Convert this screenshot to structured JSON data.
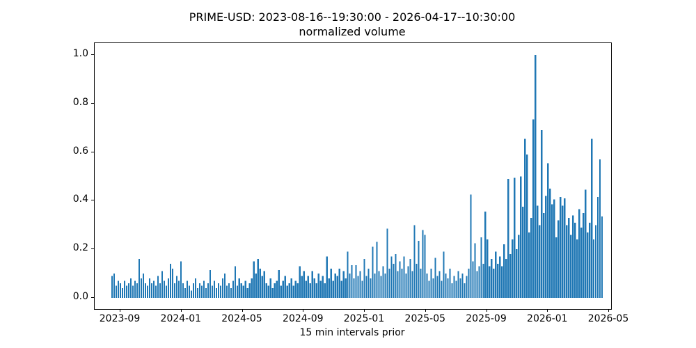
{
  "figure": {
    "title": "PRIME-USD: 2023-08-16--19:30:00 - 2026-04-17--10:30:00",
    "subtitle": "normalized volume"
  },
  "chart_data": {
    "type": "bar",
    "title": "PRIME-USD: 2023-08-16--19:30:00 - 2026-04-17--10:30:00",
    "subtitle": "normalized volume",
    "xlabel": "15 min intervals prior",
    "ylabel": "",
    "x_range_start": "2023-08-16--19:30:00",
    "x_range_end": "2026-04-17--10:30:00",
    "x_tick_labels": [
      "2023-09",
      "2024-01",
      "2024-05",
      "2024-09",
      "2025-01",
      "2025-05",
      "2025-09",
      "2026-01",
      "2026-05"
    ],
    "y_ticks": [
      0.0,
      0.2,
      0.4,
      0.6,
      0.8,
      1.0
    ],
    "ylim": [
      0.0,
      1.0
    ],
    "grid": false,
    "legend_position": "none",
    "bar_color": "#1f77b4",
    "values_note": "downsampled max-envelope of the dense 15-min volume series, left(2023-08) to right(2026-04)",
    "values": [
      0.09,
      0.1,
      0.05,
      0.07,
      0.06,
      0.04,
      0.07,
      0.05,
      0.06,
      0.08,
      0.05,
      0.07,
      0.06,
      0.16,
      0.08,
      0.1,
      0.06,
      0.05,
      0.08,
      0.06,
      0.07,
      0.05,
      0.09,
      0.06,
      0.11,
      0.07,
      0.05,
      0.08,
      0.14,
      0.12,
      0.06,
      0.09,
      0.07,
      0.15,
      0.06,
      0.04,
      0.07,
      0.05,
      0.03,
      0.06,
      0.08,
      0.04,
      0.06,
      0.05,
      0.07,
      0.04,
      0.06,
      0.115,
      0.05,
      0.07,
      0.04,
      0.06,
      0.05,
      0.08,
      0.1,
      0.05,
      0.06,
      0.04,
      0.07,
      0.13,
      0.05,
      0.08,
      0.06,
      0.05,
      0.07,
      0.04,
      0.06,
      0.08,
      0.15,
      0.1,
      0.16,
      0.12,
      0.09,
      0.11,
      0.06,
      0.05,
      0.08,
      0.04,
      0.06,
      0.07,
      0.115,
      0.05,
      0.07,
      0.09,
      0.05,
      0.06,
      0.08,
      0.05,
      0.07,
      0.06,
      0.13,
      0.09,
      0.11,
      0.07,
      0.09,
      0.06,
      0.11,
      0.08,
      0.06,
      0.1,
      0.07,
      0.09,
      0.06,
      0.17,
      0.08,
      0.12,
      0.07,
      0.1,
      0.09,
      0.12,
      0.07,
      0.11,
      0.08,
      0.19,
      0.1,
      0.135,
      0.08,
      0.135,
      0.09,
      0.11,
      0.07,
      0.16,
      0.09,
      0.12,
      0.08,
      0.21,
      0.1,
      0.23,
      0.11,
      0.09,
      0.13,
      0.1,
      0.285,
      0.12,
      0.17,
      0.14,
      0.18,
      0.11,
      0.15,
      0.12,
      0.17,
      0.1,
      0.13,
      0.16,
      0.11,
      0.3,
      0.14,
      0.235,
      0.12,
      0.28,
      0.26,
      0.1,
      0.07,
      0.12,
      0.08,
      0.165,
      0.09,
      0.11,
      0.07,
      0.19,
      0.1,
      0.08,
      0.12,
      0.06,
      0.09,
      0.07,
      0.11,
      0.08,
      0.1,
      0.06,
      0.09,
      0.12,
      0.425,
      0.15,
      0.225,
      0.11,
      0.13,
      0.25,
      0.14,
      0.355,
      0.24,
      0.13,
      0.16,
      0.12,
      0.19,
      0.14,
      0.17,
      0.13,
      0.22,
      0.16,
      0.49,
      0.18,
      0.24,
      0.495,
      0.2,
      0.26,
      0.5,
      0.375,
      0.655,
      0.59,
      0.27,
      0.33,
      0.735,
      1.0,
      0.38,
      0.3,
      0.69,
      0.35,
      0.42,
      0.555,
      0.45,
      0.385,
      0.405,
      0.25,
      0.32,
      0.415,
      0.38,
      0.41,
      0.3,
      0.33,
      0.26,
      0.34,
      0.31,
      0.24,
      0.365,
      0.29,
      0.35,
      0.445,
      0.27,
      0.31,
      0.655,
      0.24,
      0.3,
      0.415,
      0.57,
      0.335
    ]
  }
}
